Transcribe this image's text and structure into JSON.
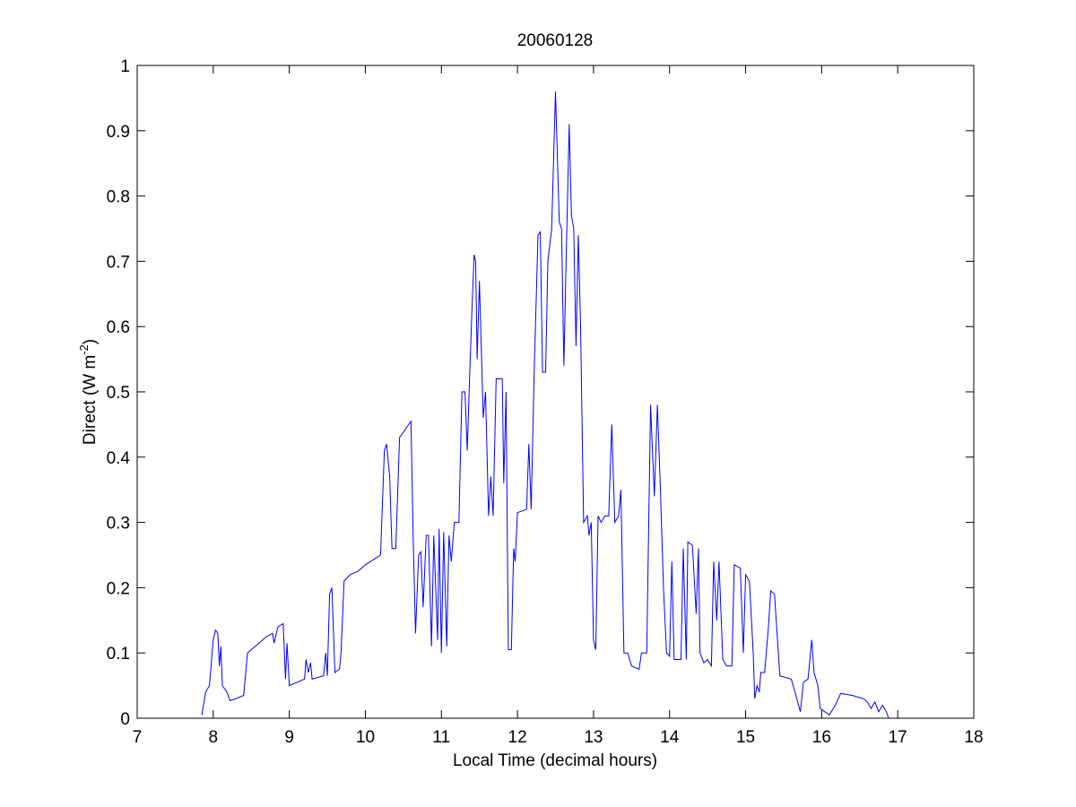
{
  "chart_data": {
    "type": "line",
    "title": "20060128",
    "xlabel": "Local Time (decimal hours)",
    "ylabel": {
      "text": "Direct (W m",
      "superscript": "-2",
      "suffix": ")"
    },
    "color": "#0000ff",
    "xlim": [
      7,
      18
    ],
    "xticks": [
      7,
      8,
      9,
      10,
      11,
      12,
      13,
      14,
      15,
      16,
      17,
      18
    ],
    "ylim": [
      0,
      1
    ],
    "yticks": [
      0,
      0.1,
      0.2,
      0.3,
      0.4,
      0.5,
      0.6,
      0.7,
      0.8,
      0.9,
      1
    ],
    "grid": false,
    "x": [
      7.85,
      7.9,
      7.95,
      8.0,
      8.03,
      8.06,
      8.08,
      8.1,
      8.12,
      8.18,
      8.22,
      8.3,
      8.4,
      8.45,
      8.55,
      8.7,
      8.78,
      8.8,
      8.85,
      8.92,
      8.95,
      8.97,
      9.0,
      9.2,
      9.22,
      9.25,
      9.28,
      9.3,
      9.45,
      9.48,
      9.5,
      9.53,
      9.56,
      9.6,
      9.66,
      9.68,
      9.72,
      9.8,
      9.9,
      9.95,
      10.0,
      10.2,
      10.25,
      10.28,
      10.32,
      10.35,
      10.4,
      10.45,
      10.6,
      10.63,
      10.66,
      10.7,
      10.73,
      10.76,
      10.8,
      10.83,
      10.87,
      10.9,
      10.95,
      10.97,
      11.0,
      11.03,
      11.07,
      11.1,
      11.13,
      11.17,
      11.23,
      11.27,
      11.31,
      11.34,
      11.37,
      11.4,
      11.43,
      11.45,
      11.47,
      11.5,
      11.55,
      11.58,
      11.62,
      11.65,
      11.68,
      11.72,
      11.8,
      11.82,
      11.85,
      11.88,
      11.92,
      11.95,
      11.97,
      12.0,
      12.12,
      12.15,
      12.18,
      12.22,
      12.27,
      12.3,
      12.33,
      12.37,
      12.4,
      12.45,
      12.5,
      12.52,
      12.55,
      12.58,
      12.61,
      12.64,
      12.68,
      12.71,
      12.74,
      12.77,
      12.8,
      12.83,
      12.87,
      12.92,
      12.94,
      12.97,
      13.0,
      13.03,
      13.06,
      13.1,
      13.15,
      13.2,
      13.24,
      13.28,
      13.33,
      13.36,
      13.4,
      13.45,
      13.5,
      13.6,
      13.63,
      13.7,
      13.75,
      13.8,
      13.84,
      13.88,
      13.92,
      13.96,
      14.0,
      14.03,
      14.06,
      14.15,
      14.18,
      14.22,
      14.24,
      14.3,
      14.35,
      14.38,
      14.4,
      14.45,
      14.5,
      14.55,
      14.58,
      14.62,
      14.65,
      14.7,
      14.75,
      14.82,
      14.85,
      14.93,
      14.97,
      15.0,
      15.05,
      15.1,
      15.12,
      15.15,
      15.18,
      15.2,
      15.25,
      15.3,
      15.33,
      15.38,
      15.45,
      15.6,
      15.65,
      15.72,
      15.76,
      15.82,
      15.87,
      15.9,
      15.95,
      15.98,
      16.1,
      16.18,
      16.25,
      16.4,
      16.55,
      16.6,
      16.65,
      16.7,
      16.75,
      16.8,
      16.85,
      16.88
    ],
    "values": [
      0.005,
      0.04,
      0.05,
      0.12,
      0.135,
      0.13,
      0.08,
      0.11,
      0.05,
      0.04,
      0.027,
      0.03,
      0.035,
      0.1,
      0.11,
      0.125,
      0.13,
      0.115,
      0.14,
      0.145,
      0.06,
      0.115,
      0.05,
      0.06,
      0.09,
      0.07,
      0.085,
      0.06,
      0.065,
      0.1,
      0.065,
      0.19,
      0.2,
      0.07,
      0.075,
      0.1,
      0.21,
      0.22,
      0.225,
      0.23,
      0.235,
      0.25,
      0.41,
      0.42,
      0.37,
      0.26,
      0.26,
      0.43,
      0.455,
      0.27,
      0.13,
      0.25,
      0.255,
      0.17,
      0.28,
      0.28,
      0.11,
      0.28,
      0.12,
      0.29,
      0.1,
      0.285,
      0.11,
      0.28,
      0.24,
      0.3,
      0.3,
      0.5,
      0.5,
      0.41,
      0.52,
      0.62,
      0.71,
      0.7,
      0.55,
      0.67,
      0.46,
      0.5,
      0.31,
      0.37,
      0.31,
      0.52,
      0.52,
      0.36,
      0.5,
      0.105,
      0.105,
      0.26,
      0.24,
      0.315,
      0.32,
      0.42,
      0.32,
      0.53,
      0.74,
      0.745,
      0.53,
      0.53,
      0.7,
      0.75,
      0.96,
      0.88,
      0.76,
      0.75,
      0.54,
      0.7,
      0.91,
      0.77,
      0.75,
      0.57,
      0.74,
      0.6,
      0.3,
      0.31,
      0.28,
      0.3,
      0.12,
      0.105,
      0.31,
      0.3,
      0.31,
      0.31,
      0.45,
      0.3,
      0.31,
      0.35,
      0.1,
      0.1,
      0.08,
      0.075,
      0.1,
      0.1,
      0.48,
      0.34,
      0.48,
      0.35,
      0.2,
      0.1,
      0.095,
      0.24,
      0.09,
      0.09,
      0.26,
      0.09,
      0.27,
      0.265,
      0.16,
      0.26,
      0.1,
      0.085,
      0.09,
      0.08,
      0.24,
      0.15,
      0.24,
      0.09,
      0.08,
      0.08,
      0.235,
      0.23,
      0.1,
      0.22,
      0.21,
      0.1,
      0.03,
      0.05,
      0.04,
      0.07,
      0.07,
      0.14,
      0.195,
      0.19,
      0.065,
      0.06,
      0.04,
      0.01,
      0.055,
      0.06,
      0.12,
      0.07,
      0.05,
      0.015,
      0.005,
      0.02,
      0.038,
      0.035,
      0.03,
      0.025,
      0.015,
      0.025,
      0.01,
      0.02,
      0.01,
      0.0
    ]
  }
}
